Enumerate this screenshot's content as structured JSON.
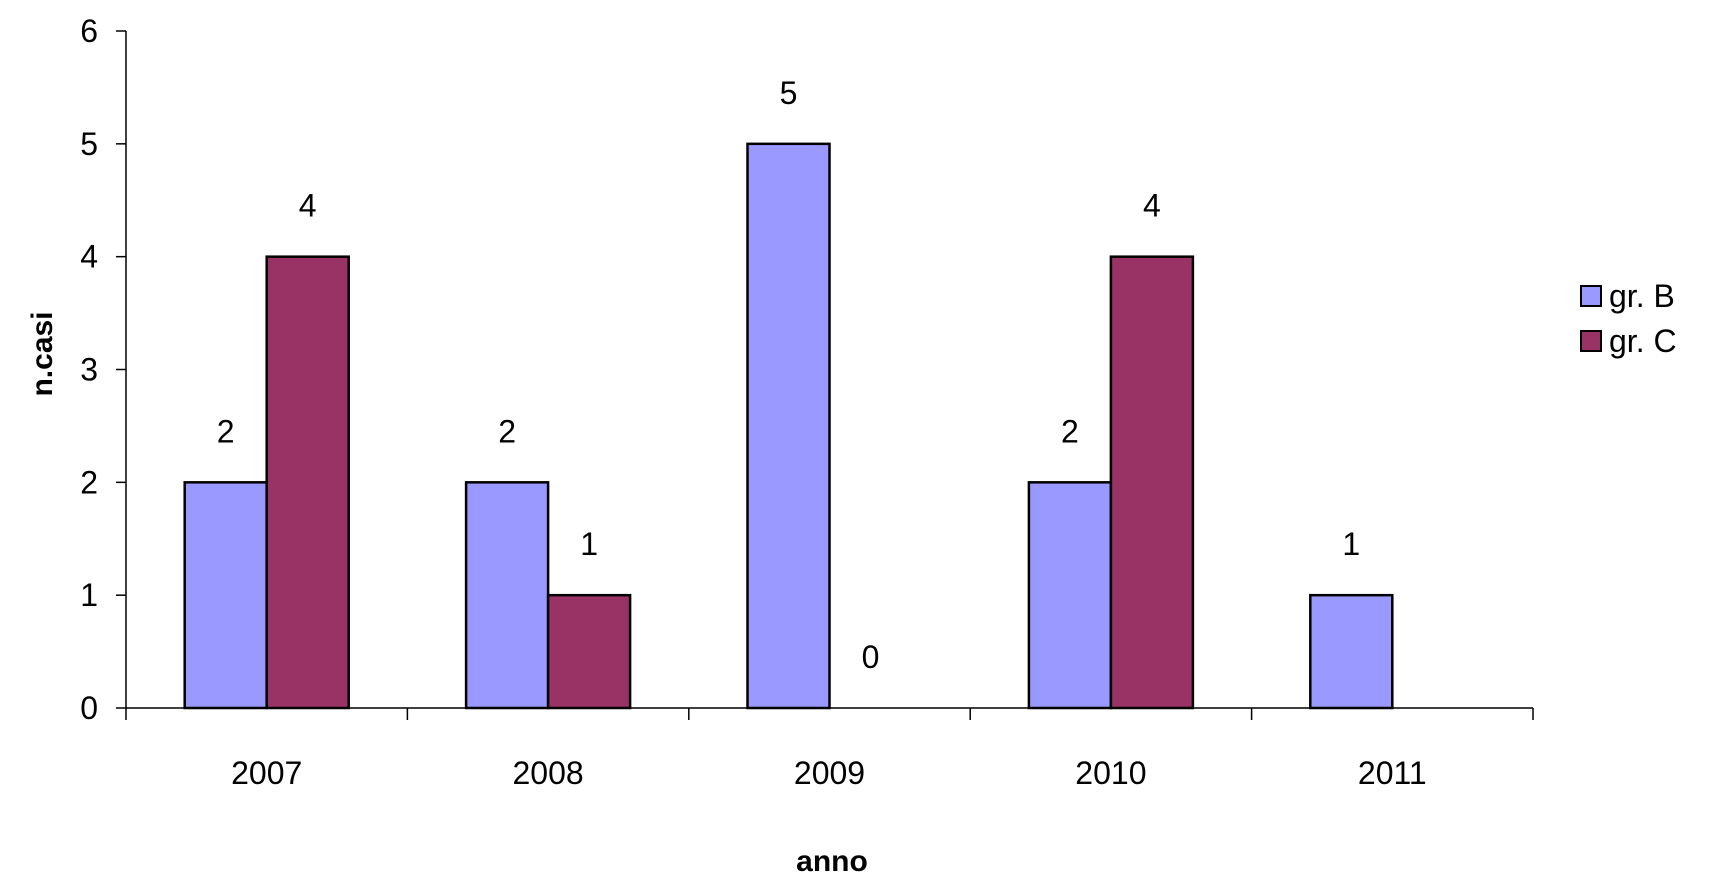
{
  "chart_data": {
    "type": "bar",
    "title": "",
    "xlabel": "anno",
    "ylabel": "n.casi",
    "categories": [
      "2007",
      "2008",
      "2009",
      "2010",
      "2011"
    ],
    "ylim": [
      0,
      6
    ],
    "yticks": [
      "0",
      "1",
      "2",
      "3",
      "4",
      "5",
      "6"
    ],
    "grid": false,
    "legend_position": "right",
    "series": [
      {
        "name": "gr. B",
        "color": "#9999FF",
        "values": [
          2,
          2,
          5,
          2,
          1
        ],
        "labels": [
          "2",
          "2",
          "5",
          "2",
          "1"
        ]
      },
      {
        "name": "gr. C",
        "color": "#993366",
        "values": [
          4,
          1,
          0,
          4,
          null
        ],
        "labels": [
          "4",
          "1",
          "0",
          "4",
          null
        ]
      }
    ]
  }
}
